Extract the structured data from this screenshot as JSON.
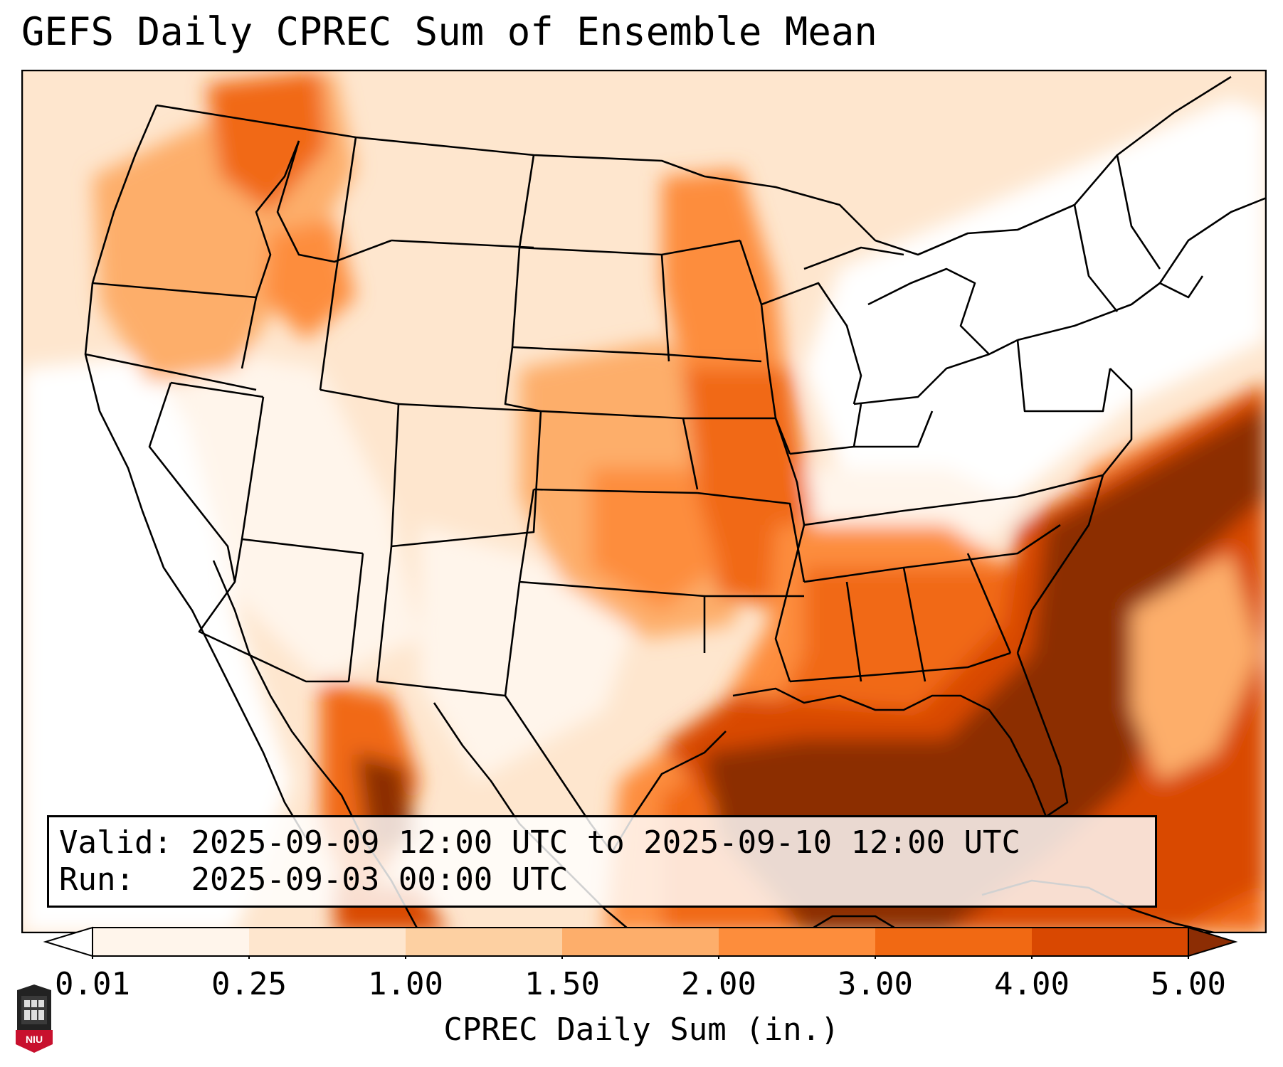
{
  "figure": {
    "title": "GEFS Daily CPREC Sum of Ensemble Mean",
    "valid_label": "Valid:",
    "valid_value": "2025-09-09 12:00 UTC to 2025-09-10 12:00 UTC",
    "run_label": "Run:",
    "run_value": "2025-09-03 00:00 UTC"
  },
  "colorbar": {
    "label": "CPREC Daily Sum (in.)",
    "ticks": [
      "0.01",
      "0.25",
      "1.00",
      "1.50",
      "2.00",
      "3.00",
      "4.00",
      "5.00"
    ],
    "colors": [
      "#fff5eb",
      "#fee6ce",
      "#fdd0a2",
      "#fdae6b",
      "#fd8d3c",
      "#f16913",
      "#d94801",
      "#8c2d04"
    ],
    "under_color": "#ffffff",
    "over_color": "#8c2d04"
  },
  "logo": {
    "text": "NIU",
    "icon": "university-tower-icon"
  }
}
